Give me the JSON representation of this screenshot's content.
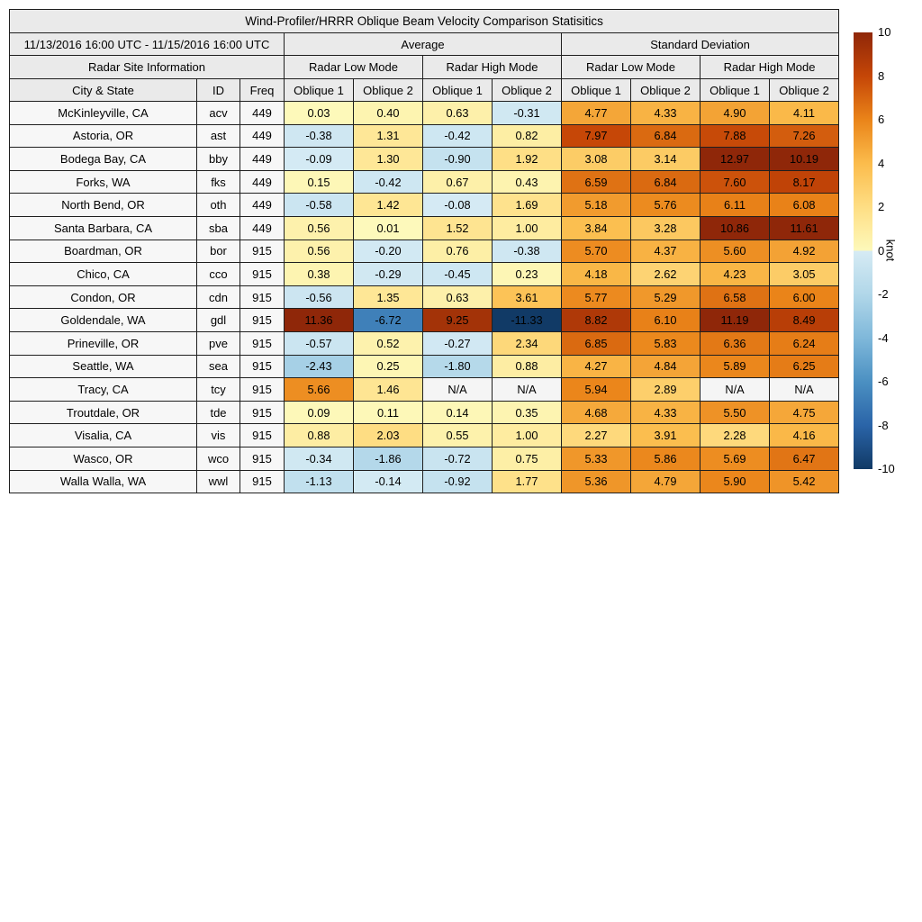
{
  "chart_data": {
    "type": "table",
    "title": "Wind-Profiler/HRRR Oblique Beam Velocity Comparison Statisitics",
    "date_range": "11/13/2016 16:00 UTC - 11/15/2016 16:00 UTC",
    "headers": {
      "average": "Average",
      "standard_deviation": "Standard Deviation",
      "site_info": "Radar Site Information",
      "low_mode": "Radar Low Mode",
      "high_mode": "Radar High Mode",
      "city_state": "City & State",
      "id": "ID",
      "freq": "Freq",
      "oblique1": "Oblique 1",
      "oblique2": "Oblique 2"
    },
    "rows": [
      {
        "city": "McKinleyville, CA",
        "id": "acv",
        "freq": "449",
        "values": [
          "0.03",
          "0.40",
          "0.63",
          "-0.31",
          "4.77",
          "4.33",
          "4.90",
          "4.11"
        ]
      },
      {
        "city": "Astoria, OR",
        "id": "ast",
        "freq": "449",
        "values": [
          "-0.38",
          "1.31",
          "-0.42",
          "0.82",
          "7.97",
          "6.84",
          "7.88",
          "7.26"
        ]
      },
      {
        "city": "Bodega Bay, CA",
        "id": "bby",
        "freq": "449",
        "values": [
          "-0.09",
          "1.30",
          "-0.90",
          "1.92",
          "3.08",
          "3.14",
          "12.97",
          "10.19"
        ]
      },
      {
        "city": "Forks, WA",
        "id": "fks",
        "freq": "449",
        "values": [
          "0.15",
          "-0.42",
          "0.67",
          "0.43",
          "6.59",
          "6.84",
          "7.60",
          "8.17"
        ]
      },
      {
        "city": "North Bend, OR",
        "id": "oth",
        "freq": "449",
        "values": [
          "-0.58",
          "1.42",
          "-0.08",
          "1.69",
          "5.18",
          "5.76",
          "6.11",
          "6.08"
        ]
      },
      {
        "city": "Santa Barbara, CA",
        "id": "sba",
        "freq": "449",
        "values": [
          "0.56",
          "0.01",
          "1.52",
          "1.00",
          "3.84",
          "3.28",
          "10.86",
          "11.61"
        ]
      },
      {
        "city": "Boardman, OR",
        "id": "bor",
        "freq": "915",
        "values": [
          "0.56",
          "-0.20",
          "0.76",
          "-0.38",
          "5.70",
          "4.37",
          "5.60",
          "4.92"
        ]
      },
      {
        "city": "Chico, CA",
        "id": "cco",
        "freq": "915",
        "values": [
          "0.38",
          "-0.29",
          "-0.45",
          "0.23",
          "4.18",
          "2.62",
          "4.23",
          "3.05"
        ]
      },
      {
        "city": "Condon, OR",
        "id": "cdn",
        "freq": "915",
        "values": [
          "-0.56",
          "1.35",
          "0.63",
          "3.61",
          "5.77",
          "5.29",
          "6.58",
          "6.00"
        ]
      },
      {
        "city": "Goldendale, WA",
        "id": "gdl",
        "freq": "915",
        "values": [
          "11.36",
          "-6.72",
          "9.25",
          "-11.33",
          "8.82",
          "6.10",
          "11.19",
          "8.49"
        ]
      },
      {
        "city": "Prineville, OR",
        "id": "pve",
        "freq": "915",
        "values": [
          "-0.57",
          "0.52",
          "-0.27",
          "2.34",
          "6.85",
          "5.83",
          "6.36",
          "6.24"
        ]
      },
      {
        "city": "Seattle, WA",
        "id": "sea",
        "freq": "915",
        "values": [
          "-2.43",
          "0.25",
          "-1.80",
          "0.88",
          "4.27",
          "4.84",
          "5.89",
          "6.25"
        ]
      },
      {
        "city": "Tracy, CA",
        "id": "tcy",
        "freq": "915",
        "values": [
          "5.66",
          "1.46",
          "N/A",
          "N/A",
          "5.94",
          "2.89",
          "N/A",
          "N/A"
        ]
      },
      {
        "city": "Troutdale, OR",
        "id": "tde",
        "freq": "915",
        "values": [
          "0.09",
          "0.11",
          "0.14",
          "0.35",
          "4.68",
          "4.33",
          "5.50",
          "4.75"
        ]
      },
      {
        "city": "Visalia, CA",
        "id": "vis",
        "freq": "915",
        "values": [
          "0.88",
          "2.03",
          "0.55",
          "1.00",
          "2.27",
          "3.91",
          "2.28",
          "4.16"
        ]
      },
      {
        "city": "Wasco, OR",
        "id": "wco",
        "freq": "915",
        "values": [
          "-0.34",
          "-1.86",
          "-0.72",
          "0.75",
          "5.33",
          "5.86",
          "5.69",
          "6.47"
        ]
      },
      {
        "city": "Walla Walla, WA",
        "id": "wwl",
        "freq": "915",
        "values": [
          "-1.13",
          "-0.14",
          "-0.92",
          "1.77",
          "5.36",
          "4.79",
          "5.90",
          "5.42"
        ]
      }
    ],
    "colorbar": {
      "label": "knot",
      "vmin": -10,
      "vmax": 10,
      "ticks": [
        10,
        8,
        6,
        4,
        2,
        0,
        -2,
        -4,
        -6,
        -8,
        -10
      ],
      "stops": [
        [
          -10,
          "#113a66"
        ],
        [
          -8,
          "#2a64a8"
        ],
        [
          -6,
          "#4b90c2"
        ],
        [
          -4,
          "#7fb8da"
        ],
        [
          -2,
          "#b1d7e9"
        ],
        [
          -0.001,
          "#d6ebf4"
        ],
        [
          0,
          "#fdf9bb"
        ],
        [
          2,
          "#fede84"
        ],
        [
          4,
          "#fbbc4c"
        ],
        [
          6,
          "#ea8419"
        ],
        [
          8,
          "#c54607"
        ],
        [
          10,
          "#8f2709"
        ]
      ],
      "na_color": "#f5f5f5"
    }
  }
}
